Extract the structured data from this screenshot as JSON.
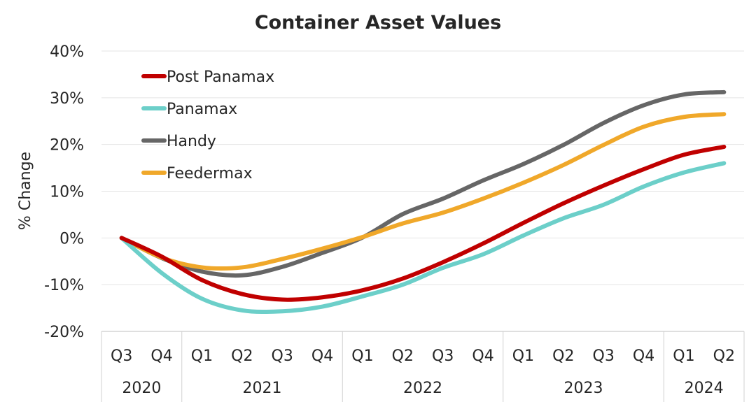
{
  "chart_data": {
    "type": "line",
    "title": "Container Asset Values",
    "ylabel": "% Change",
    "xlabel": "",
    "ylim": [
      -20,
      40
    ],
    "yticks": [
      -20,
      -10,
      0,
      10,
      20,
      30,
      40
    ],
    "ytick_labels": [
      "-20%",
      "-10%",
      "0%",
      "10%",
      "20%",
      "30%",
      "40%"
    ],
    "quarters": [
      "Q3",
      "Q4",
      "Q1",
      "Q2",
      "Q3",
      "Q4",
      "Q1",
      "Q2",
      "Q3",
      "Q4",
      "Q1",
      "Q2",
      "Q3",
      "Q4",
      "Q1",
      "Q2"
    ],
    "years": [
      {
        "label": "2020",
        "count": 2
      },
      {
        "label": "2021",
        "count": 4
      },
      {
        "label": "2022",
        "count": 4
      },
      {
        "label": "2023",
        "count": 4
      },
      {
        "label": "2024",
        "count": 2
      }
    ],
    "grid": true,
    "legend_position": "top-left",
    "series": [
      {
        "name": "Post Panamax",
        "color": "#c00000",
        "values": [
          0,
          -4,
          -9,
          -12,
          -13.2,
          -12.7,
          -11.2,
          -8.7,
          -5.2,
          -1.2,
          3.2,
          7.4,
          11.2,
          14.7,
          17.8,
          19.5
        ]
      },
      {
        "name": "Panamax",
        "color": "#6ccfc9",
        "values": [
          0,
          -7.5,
          -13,
          -15.5,
          -15.7,
          -14.7,
          -12.5,
          -10,
          -6.4,
          -3.5,
          0.5,
          4.2,
          7.1,
          11,
          14,
          16
        ]
      },
      {
        "name": "Handy",
        "color": "#666666",
        "values": [
          0,
          -4.3,
          -7.2,
          -8,
          -6.2,
          -3.2,
          0.1,
          5.1,
          8.4,
          12.3,
          15.8,
          19.9,
          24.6,
          28.4,
          30.7,
          31.2
        ]
      },
      {
        "name": "Feedermax",
        "color": "#f0a82a",
        "values": [
          0,
          -4.2,
          -6.3,
          -6.3,
          -4.5,
          -2.3,
          0.2,
          3.1,
          5.4,
          8.4,
          11.8,
          15.6,
          19.9,
          23.8,
          25.9,
          26.5
        ]
      }
    ]
  }
}
